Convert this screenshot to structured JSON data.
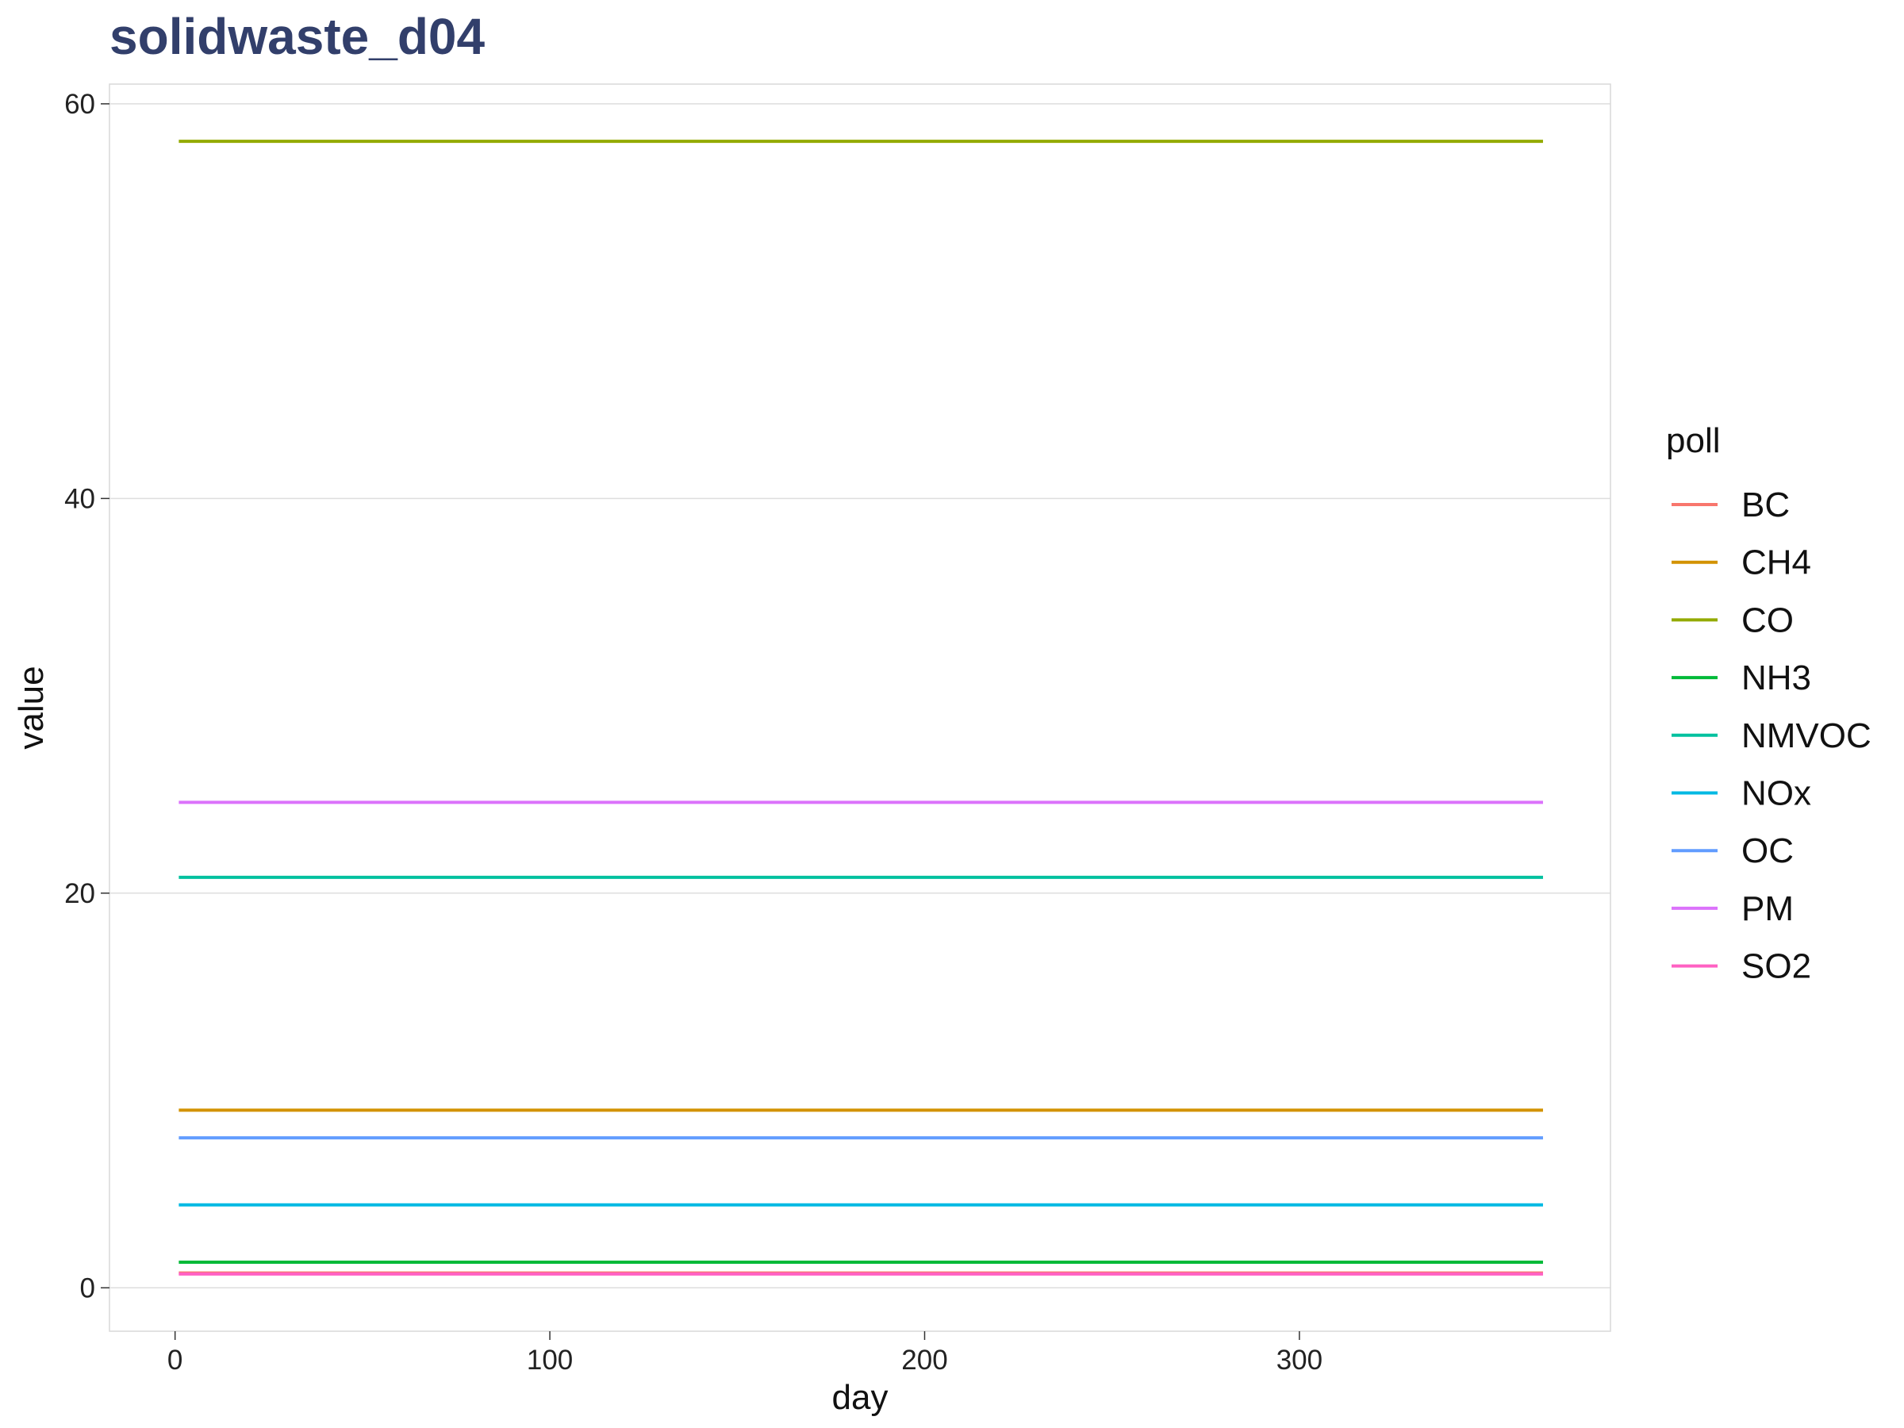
{
  "chart_data": {
    "type": "line",
    "title": "solidwaste_d04",
    "xlabel": "day",
    "ylabel": "value",
    "xlim": [
      -17.5,
      383
    ],
    "ylim": [
      -2.2,
      61
    ],
    "x_ticks": [
      0,
      100,
      200,
      300
    ],
    "y_ticks": [
      0,
      20,
      40,
      60
    ],
    "grid": true,
    "legend": {
      "title": "poll",
      "position": "right"
    },
    "x": [
      1,
      365
    ],
    "series": [
      {
        "name": "BC",
        "color": "#F8766D",
        "values": [
          0.75,
          0.75
        ]
      },
      {
        "name": "CH4",
        "color": "#D39200",
        "values": [
          9.0,
          9.0
        ]
      },
      {
        "name": "CO",
        "color": "#93AA00",
        "values": [
          58.1,
          58.1
        ]
      },
      {
        "name": "NH3",
        "color": "#00BA38",
        "values": [
          1.3,
          1.3
        ]
      },
      {
        "name": "NMVOC",
        "color": "#00C19F",
        "values": [
          20.8,
          20.8
        ]
      },
      {
        "name": "NOx",
        "color": "#00B9E3",
        "values": [
          4.2,
          4.2
        ]
      },
      {
        "name": "OC",
        "color": "#619CFF",
        "values": [
          7.6,
          7.6
        ]
      },
      {
        "name": "PM",
        "color": "#DB72FB",
        "values": [
          24.6,
          24.6
        ]
      },
      {
        "name": "SO2",
        "color": "#FF61C3",
        "values": [
          0.7,
          0.7
        ]
      }
    ]
  }
}
